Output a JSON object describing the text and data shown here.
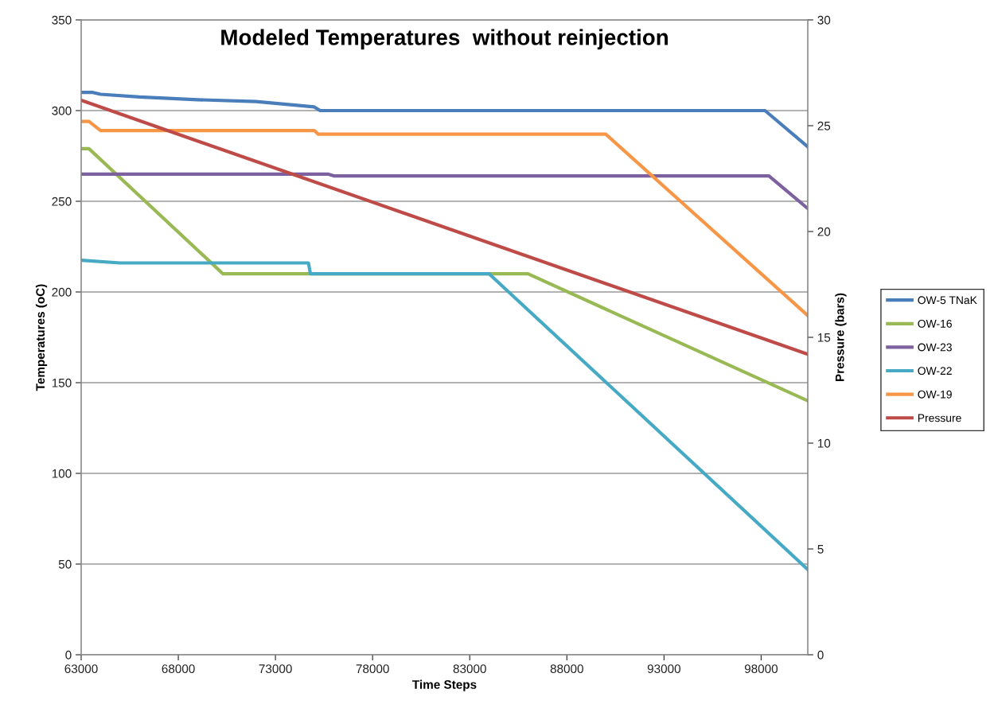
{
  "chart_data": {
    "type": "line",
    "title": "Modeled Temperatures  without reinjection",
    "xlabel": "Time Steps",
    "ylabel": "Temperatures (oC)",
    "y2label": "Pressure (bars)",
    "xlim": [
      63000,
      100400
    ],
    "xticks": [
      63000,
      68000,
      73000,
      78000,
      83000,
      88000,
      93000,
      98000
    ],
    "ylim": [
      0,
      350
    ],
    "yticks": [
      0,
      50,
      100,
      150,
      200,
      250,
      300,
      350
    ],
    "y2lim": [
      0,
      30
    ],
    "y2ticks": [
      0,
      5,
      10,
      15,
      20,
      25,
      30
    ],
    "grid": "y",
    "legend": "right",
    "marker": "none",
    "line_style": "solid",
    "series": [
      {
        "name": "OW-5 TNaK",
        "color": "#4a7ebb",
        "x": [
          63000,
          63600,
          64000,
          66000,
          69000,
          72000,
          74000,
          75000,
          75300,
          98200,
          100400
        ],
        "values": [
          310,
          310,
          309,
          307.5,
          306,
          305,
          303,
          302,
          300,
          300,
          280
        ]
      },
      {
        "name": "OW-16",
        "color": "#98b954",
        "x": [
          63000,
          63400,
          70000,
          70300,
          86000,
          100400
        ],
        "values": [
          279,
          279,
          213,
          210,
          210,
          140
        ]
      },
      {
        "name": "OW-23",
        "color": "#7d60a0",
        "x": [
          63000,
          75700,
          76000,
          98400,
          100400
        ],
        "values": [
          265,
          265,
          264,
          264,
          246
        ]
      },
      {
        "name": "OW-22",
        "color": "#46aac5",
        "x": [
          63000,
          65000,
          74700,
          74800,
          84000,
          100400
        ],
        "values": [
          217.5,
          216,
          216,
          210,
          210,
          47
        ]
      },
      {
        "name": "OW-19",
        "color": "#f79646",
        "x": [
          63000,
          63400,
          64000,
          75000,
          75200,
          90000,
          100400
        ],
        "values": [
          294,
          294,
          289,
          289,
          287,
          287,
          187
        ]
      },
      {
        "name": "Pressure",
        "color": "#be4b48",
        "axis": "y2",
        "x": [
          63000,
          100400
        ],
        "values": [
          26.2,
          14.2
        ]
      }
    ]
  }
}
